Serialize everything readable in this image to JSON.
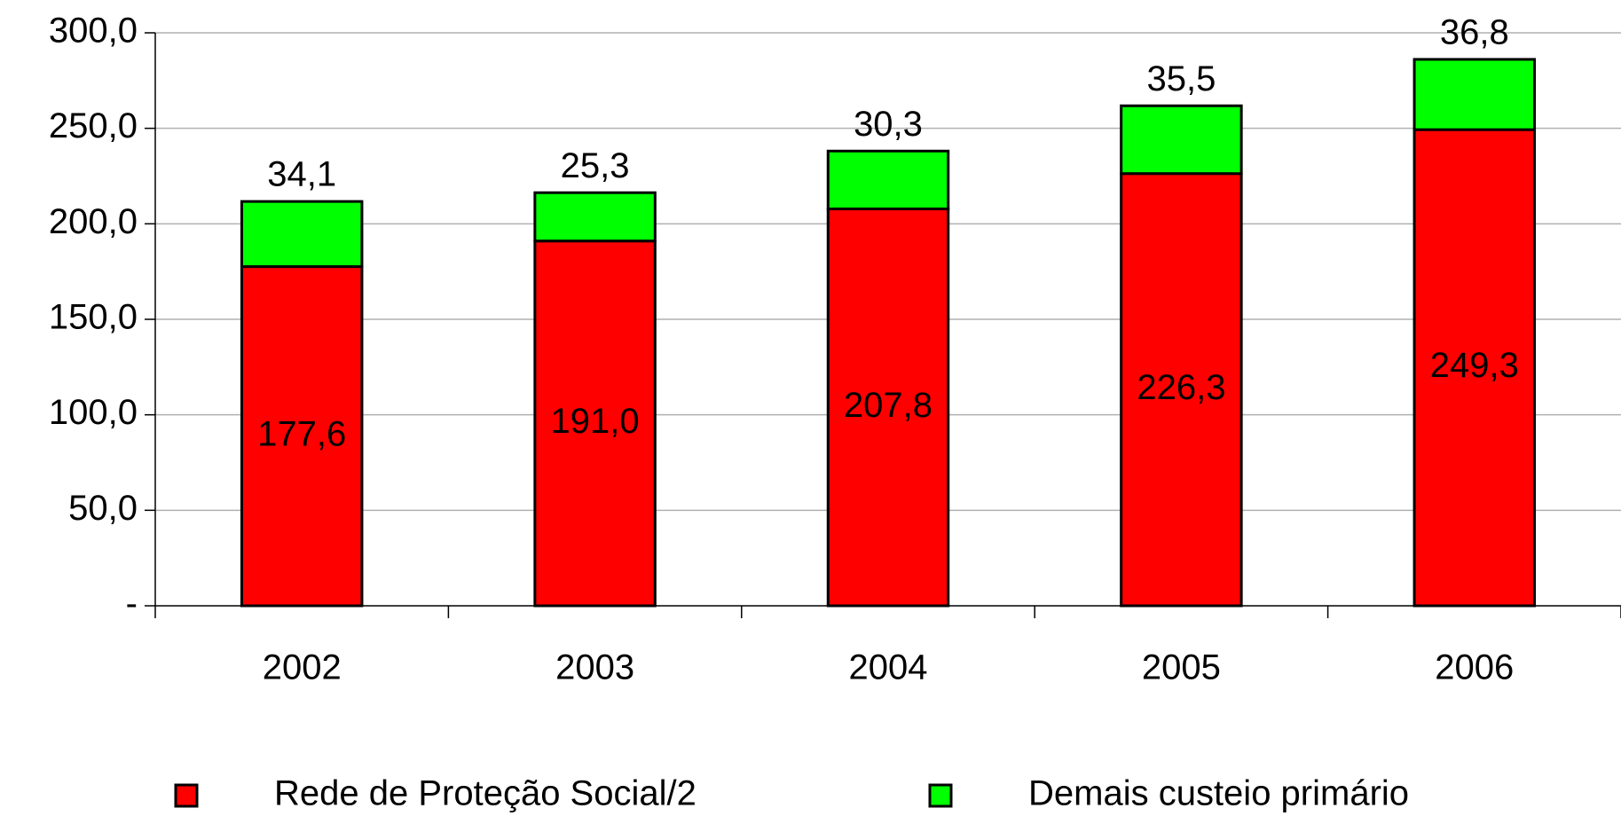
{
  "chart_data": {
    "type": "stacked_bar",
    "categories": [
      "2002",
      "2003",
      "2004",
      "2005",
      "2006"
    ],
    "series": [
      {
        "name": "Rede de Proteção Social/2",
        "color": "#ff0000",
        "values": [
          177.6,
          191.0,
          207.8,
          226.3,
          249.3
        ],
        "value_labels": [
          "177,6",
          "191,0",
          "207,8",
          "226,3",
          "249,3"
        ]
      },
      {
        "name": "Demais custeio primário",
        "color": "#00ff00",
        "values": [
          34.1,
          25.3,
          30.3,
          35.5,
          36.8
        ],
        "value_labels": [
          "34,1",
          "25,3",
          "30,3",
          "35,5",
          "36,8"
        ]
      }
    ],
    "ylim": [
      0,
      300
    ],
    "yticks": [
      {
        "value": 0,
        "label": "-"
      },
      {
        "value": 50,
        "label": "50,0"
      },
      {
        "value": 100,
        "label": "100,0"
      },
      {
        "value": 150,
        "label": "150,0"
      },
      {
        "value": 200,
        "label": "200,0"
      },
      {
        "value": 250,
        "label": "250,0"
      },
      {
        "value": 300,
        "label": "300,0"
      }
    ],
    "grid": true,
    "legend": "bottom"
  }
}
